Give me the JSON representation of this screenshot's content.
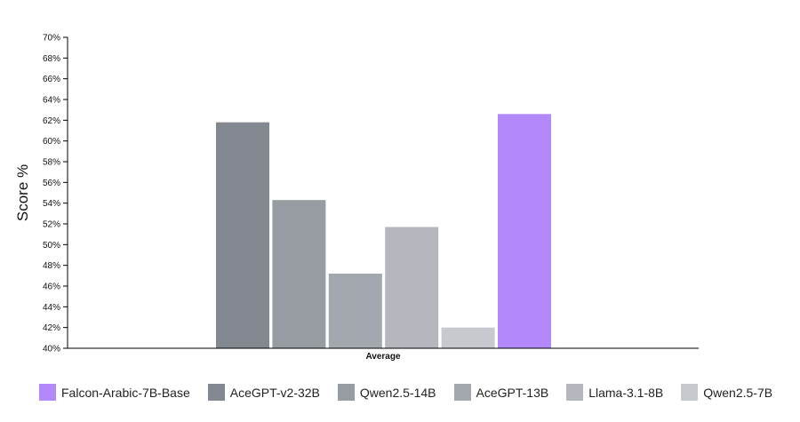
{
  "chart_data": {
    "type": "bar",
    "categories": [
      "Average"
    ],
    "ylabel": "Score %",
    "xlabel": "",
    "ylim": [
      40,
      70
    ],
    "ytick_step": 2,
    "ytick_format": "%",
    "legend_position": "bottom",
    "series": [
      {
        "name": "AceGPT-v2-32B",
        "values": [
          61.8
        ],
        "color": "#83878f"
      },
      {
        "name": "Qwen2.5-14B",
        "values": [
          54.3
        ],
        "color": "#979ba2"
      },
      {
        "name": "AceGPT-13B",
        "values": [
          47.2
        ],
        "color": "#a3a7ae"
      },
      {
        "name": "Llama-3.1-8B",
        "values": [
          51.7
        ],
        "color": "#b4b8be"
      },
      {
        "name": "Qwen2.5-7B",
        "values": [
          42.0
        ],
        "color": "#c6c9ce"
      },
      {
        "name": "Falcon-Arabic-7B-Base",
        "values": [
          62.6
        ],
        "color": "#b388fa"
      }
    ],
    "legend_order": [
      "Falcon-Arabic-7B-Base",
      "AceGPT-v2-32B",
      "Qwen2.5-14B",
      "AceGPT-13B",
      "Llama-3.1-8B",
      "Qwen2.5-7B"
    ]
  }
}
